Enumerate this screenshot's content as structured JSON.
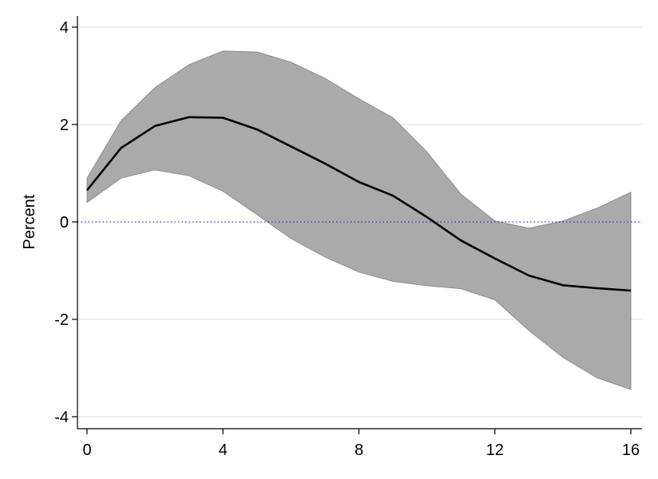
{
  "chart_data": {
    "type": "area",
    "ylabel": "Percent",
    "xlabel": "",
    "xlim": [
      0,
      16
    ],
    "ylim": [
      -4,
      4
    ],
    "x_ticks": [
      0,
      4,
      8,
      12,
      16
    ],
    "y_ticks": [
      -4,
      -2,
      0,
      2,
      4
    ],
    "grid": "horizontal",
    "x": [
      0,
      1,
      2,
      3,
      4,
      5,
      6,
      7,
      8,
      9,
      10,
      11,
      12,
      13,
      14,
      15,
      16
    ],
    "series": [
      {
        "kind": "line",
        "values": [
          0.65,
          1.52,
          1.97,
          2.15,
          2.14,
          1.9,
          1.55,
          1.2,
          0.82,
          0.54,
          0.1,
          -0.38,
          -0.75,
          -1.1,
          -1.3,
          -1.36,
          -1.41
        ]
      },
      {
        "kind": "band-upper",
        "values": [
          0.9,
          2.08,
          2.76,
          3.23,
          3.51,
          3.49,
          3.28,
          2.95,
          2.53,
          2.14,
          1.44,
          0.57,
          0.02,
          -0.13,
          0.02,
          0.28,
          0.61
        ]
      },
      {
        "kind": "band-lower",
        "values": [
          0.4,
          0.9,
          1.07,
          0.95,
          0.63,
          0.15,
          -0.34,
          -0.72,
          -1.03,
          -1.22,
          -1.31,
          -1.37,
          -1.6,
          -2.23,
          -2.78,
          -3.2,
          -3.44
        ]
      }
    ],
    "reference_line": {
      "y": 0,
      "style": "dotted"
    },
    "colors": {
      "line": "#000000",
      "band": "#aaaaaa",
      "band_edge": "#8f8f8f",
      "reference": "#3333cc",
      "grid": "#e8e8e8"
    }
  }
}
